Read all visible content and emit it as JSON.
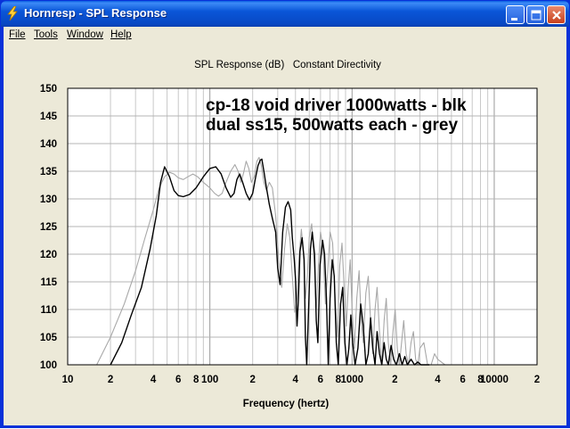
{
  "window": {
    "title": "Hornresp - SPL Response",
    "icon": "lightning-icon"
  },
  "menu": [
    {
      "label": "File",
      "underline": "F"
    },
    {
      "label": "Tools",
      "underline": "T"
    },
    {
      "label": "Window",
      "underline": "W"
    },
    {
      "label": "Help",
      "underline": "H"
    }
  ],
  "chart_data": {
    "type": "line",
    "title": "SPL Response (dB)   Constant Directivity",
    "xlabel": "Frequency (hertz)",
    "ylabel": "",
    "x_scale": "log",
    "xlim": [
      10,
      20000
    ],
    "ylim": [
      100,
      150
    ],
    "grid": true,
    "y_ticks": [
      150,
      145,
      140,
      135,
      130,
      125,
      120,
      115,
      110,
      105,
      100
    ],
    "x_tick_labels": [
      {
        "value": 10,
        "label": "10"
      },
      {
        "value": 20,
        "label": "2"
      },
      {
        "value": 40,
        "label": "4"
      },
      {
        "value": 60,
        "label": "6"
      },
      {
        "value": 80,
        "label": "8"
      },
      {
        "value": 100,
        "label": "100"
      },
      {
        "value": 200,
        "label": "2"
      },
      {
        "value": 400,
        "label": "4"
      },
      {
        "value": 600,
        "label": "6"
      },
      {
        "value": 800,
        "label": "8"
      },
      {
        "value": 1000,
        "label": "1000"
      },
      {
        "value": 2000,
        "label": "2"
      },
      {
        "value": 4000,
        "label": "4"
      },
      {
        "value": 6000,
        "label": "6"
      },
      {
        "value": 8000,
        "label": "8"
      },
      {
        "value": 10000,
        "label": "10000"
      },
      {
        "value": 20000,
        "label": "2"
      }
    ],
    "annotations": [
      "cp-18 void driver 1000watts - blk",
      "dual ss15, 500watts each - grey"
    ],
    "series": [
      {
        "color": "#000000",
        "x": [
          20,
          24,
          28,
          33,
          38,
          42,
          45,
          48,
          52,
          56,
          60,
          65,
          72,
          80,
          90,
          100,
          110,
          120,
          130,
          140,
          148,
          155,
          162,
          170,
          180,
          190,
          200,
          210,
          218,
          226,
          232,
          240,
          250,
          262,
          275,
          290,
          300,
          312,
          325,
          340,
          355,
          370,
          380,
          392,
          400,
          410,
          420,
          430,
          445,
          460,
          470,
          480,
          495,
          510,
          525,
          545,
          560,
          575,
          595,
          620,
          640,
          660,
          680,
          700,
          725,
          750,
          775,
          800,
          830,
          860,
          890,
          920,
          950,
          980,
          1010,
          1050,
          1100,
          1150,
          1200,
          1250,
          1300,
          1350,
          1400,
          1450,
          1500,
          1560,
          1620,
          1680,
          1740,
          1800,
          1880,
          1960,
          2050,
          2150,
          2250,
          2350,
          2450,
          2600,
          2750,
          2900,
          3050,
          3200,
          3500
        ],
        "y": [
          100,
          104,
          109,
          114,
          121,
          127,
          133,
          135.8,
          134,
          131.5,
          130.6,
          130.4,
          130.8,
          132,
          134,
          135.5,
          135.8,
          134.5,
          132,
          130.3,
          131,
          133.5,
          134.5,
          133,
          131,
          129.8,
          131,
          134,
          136,
          137,
          137.2,
          135,
          132,
          129,
          126.5,
          124,
          117.5,
          114.5,
          124,
          128.5,
          129.5,
          128,
          123,
          119,
          115.5,
          107,
          112,
          120.5,
          123,
          119,
          105,
          100,
          110,
          121,
          124,
          120,
          108,
          104,
          118,
          122.5,
          120,
          112,
          100,
          112,
          119,
          116,
          104,
          100,
          111,
          114,
          104,
          100,
          103,
          109,
          104,
          100,
          103,
          111,
          107,
          100,
          102,
          108.5,
          103,
          100,
          106,
          102,
          100,
          104,
          101,
          100,
          103.5,
          101,
          100,
          102,
          100,
          101.5,
          100,
          101,
          100,
          100.5,
          100,
          100,
          100
        ]
      },
      {
        "color": "#a8a8a8",
        "x": [
          16,
          20,
          25,
          30,
          35,
          40,
          44,
          48,
          52,
          56,
          60,
          65,
          70,
          76,
          82,
          90,
          100,
          108,
          115,
          122,
          130,
          140,
          150,
          158,
          165,
          172,
          180,
          188,
          196,
          205,
          214,
          222,
          230,
          240,
          250,
          262,
          275,
          290,
          305,
          320,
          335,
          350,
          365,
          380,
          395,
          410,
          425,
          440,
          455,
          470,
          485,
          500,
          520,
          540,
          560,
          580,
          600,
          625,
          650,
          675,
          700,
          730,
          760,
          790,
          820,
          850,
          880,
          910,
          940,
          970,
          1000,
          1040,
          1080,
          1120,
          1160,
          1200,
          1250,
          1300,
          1350,
          1400,
          1450,
          1500,
          1560,
          1620,
          1680,
          1740,
          1800,
          1870,
          1940,
          2010,
          2080,
          2150,
          2230,
          2310,
          2400,
          2500,
          2600,
          2700,
          2800,
          2900,
          3000,
          3200,
          3400,
          3600,
          3800,
          4000,
          4500,
          5000,
          6000
        ],
        "y": [
          100,
          105,
          111,
          117,
          123,
          128,
          132,
          134,
          134.8,
          134.5,
          133.8,
          133.5,
          134,
          134.5,
          134,
          133,
          132,
          131,
          130.5,
          131,
          133,
          135,
          136.2,
          135,
          133,
          134.5,
          136.8,
          135.5,
          133,
          134,
          136.8,
          137.5,
          136,
          133,
          131.5,
          133,
          132,
          127,
          119,
          114,
          121,
          125.5,
          123,
          116,
          109.5,
          112,
          120,
          124.5,
          120,
          112,
          116,
          123,
          125.5,
          119,
          110,
          118,
          124,
          121,
          111,
          117,
          124,
          122,
          112,
          105,
          118,
          122,
          114,
          107,
          114,
          119,
          110,
          103,
          112,
          117,
          108,
          104,
          113,
          116,
          108,
          102,
          110,
          114,
          106,
          100,
          108,
          112,
          104,
          100,
          106,
          110,
          103,
          100,
          104,
          108,
          102,
          100,
          104,
          106,
          101,
          100,
          103,
          104,
          100,
          100,
          102,
          101,
          100,
          100,
          100
        ]
      }
    ]
  }
}
